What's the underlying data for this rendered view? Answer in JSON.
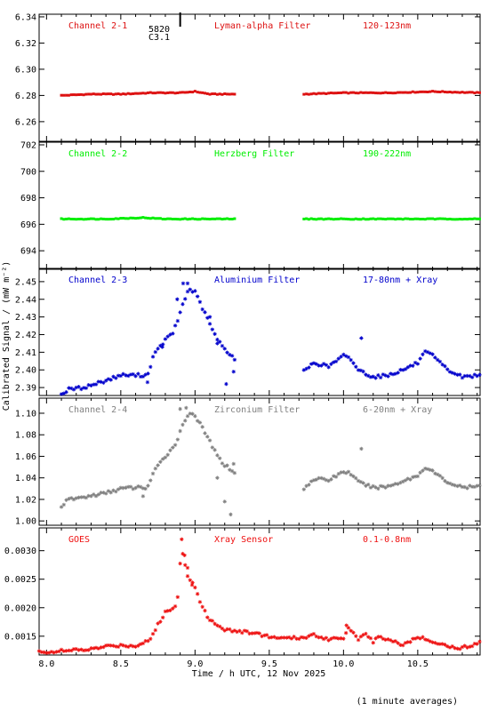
{
  "figure": {
    "xlabel": "Time / h UTC, 12 Nov 2025",
    "ylabel": "Calibrated Signal / (mW m⁻²)",
    "footnote": "(1 minute averages)",
    "marker_label_1": "5820",
    "marker_label_2": "C3.1",
    "marker_time": 8.9,
    "x_ticks": [
      "8.0",
      "8.5",
      "9.0",
      "9.5",
      "10.0",
      "10.5"
    ],
    "xlim": [
      7.95,
      10.92
    ]
  },
  "chart_data": [
    {
      "type": "scatter",
      "channel": "Channel 2-1",
      "filter": "Lyman-alpha Filter",
      "band": "120-123nm",
      "color": "#dd1111",
      "ylim": [
        6.245,
        6.342
      ],
      "y_ticks": [
        "6.26",
        "6.28",
        "6.30",
        "6.32",
        "6.34"
      ],
      "gap": [
        9.27,
        9.73
      ],
      "x_start": 8.1,
      "x_end": 10.92,
      "x": [
        8.1,
        8.3,
        8.5,
        8.7,
        8.9,
        9.0,
        9.1,
        9.27,
        9.73,
        10.0,
        10.3,
        10.6,
        10.92
      ],
      "values": [
        6.28,
        6.281,
        6.281,
        6.282,
        6.282,
        6.283,
        6.281,
        6.281,
        6.281,
        6.282,
        6.282,
        6.283,
        6.282
      ]
    },
    {
      "type": "scatter",
      "channel": "Channel 2-2",
      "filter": "Herzberg Filter",
      "band": "190-222nm",
      "color": "#00ee00",
      "ylim": [
        692.6,
        702.2
      ],
      "y_ticks": [
        "694",
        "696",
        "698",
        "700",
        "702"
      ],
      "gap": [
        9.27,
        9.73
      ],
      "x_start": 8.1,
      "x_end": 10.92,
      "x": [
        8.1,
        8.4,
        8.65,
        8.8,
        9.0,
        9.27,
        9.73,
        10.0,
        10.3,
        10.6,
        10.92
      ],
      "values": [
        696.4,
        696.4,
        696.5,
        696.4,
        696.4,
        696.4,
        696.4,
        696.4,
        696.4,
        696.4,
        696.4
      ]
    },
    {
      "type": "scatter",
      "channel": "Channel 2-3",
      "filter": "Aluminium Filter",
      "band": "17-80nm + Xray",
      "color": "#0000cc",
      "ylim": [
        2.3855,
        2.4575
      ],
      "y_ticks": [
        "2.39",
        "2.40",
        "2.41",
        "2.42",
        "2.43",
        "2.44",
        "2.45"
      ],
      "gap": [
        9.27,
        9.73
      ],
      "x_start": 8.1,
      "x_end": 10.92,
      "x": [
        8.1,
        8.15,
        8.25,
        8.4,
        8.5,
        8.6,
        8.68,
        8.72,
        8.8,
        8.85,
        8.88,
        8.92,
        8.96,
        9.0,
        9.05,
        9.1,
        9.15,
        9.2,
        9.27,
        9.73,
        9.8,
        9.9,
        10.0,
        10.05,
        10.1,
        10.2,
        10.3,
        10.4,
        10.5,
        10.55,
        10.6,
        10.7,
        10.8,
        10.92
      ],
      "values": [
        2.386,
        2.389,
        2.39,
        2.394,
        2.397,
        2.397,
        2.397,
        2.408,
        2.417,
        2.421,
        2.427,
        2.438,
        2.446,
        2.444,
        2.435,
        2.426,
        2.417,
        2.412,
        2.406,
        2.399,
        2.404,
        2.402,
        2.408,
        2.406,
        2.4,
        2.396,
        2.397,
        2.4,
        2.404,
        2.41,
        2.408,
        2.4,
        2.396,
        2.397
      ],
      "outliers_x": [
        8.68,
        8.78,
        8.88,
        8.92,
        8.95,
        9.1,
        9.15,
        9.21,
        9.26,
        10.12
      ],
      "outliers_y": [
        2.393,
        2.413,
        2.44,
        2.449,
        2.449,
        2.43,
        2.415,
        2.392,
        2.399,
        2.418
      ]
    },
    {
      "type": "scatter",
      "channel": "Channel 2-4",
      "filter": "Zirconium Filter",
      "band": "6-20nm + Xray",
      "color": "#808080",
      "ylim": [
        0.996,
        1.114
      ],
      "y_ticks": [
        "1.00",
        "1.02",
        "1.04",
        "1.06",
        "1.08",
        "1.10"
      ],
      "gap": [
        9.27,
        9.73
      ],
      "x_start": 8.1,
      "x_end": 10.92,
      "x": [
        8.1,
        8.15,
        8.25,
        8.4,
        8.5,
        8.6,
        8.68,
        8.72,
        8.8,
        8.85,
        8.88,
        8.92,
        8.96,
        9.0,
        9.05,
        9.1,
        9.15,
        9.2,
        9.27,
        9.73,
        9.8,
        9.9,
        10.0,
        10.05,
        10.1,
        10.2,
        10.3,
        10.4,
        10.5,
        10.55,
        10.6,
        10.7,
        10.8,
        10.92
      ],
      "values": [
        1.014,
        1.02,
        1.022,
        1.026,
        1.03,
        1.031,
        1.031,
        1.045,
        1.06,
        1.068,
        1.075,
        1.09,
        1.101,
        1.098,
        1.086,
        1.074,
        1.06,
        1.052,
        1.045,
        1.03,
        1.039,
        1.038,
        1.046,
        1.044,
        1.036,
        1.031,
        1.032,
        1.037,
        1.042,
        1.05,
        1.046,
        1.036,
        1.031,
        1.032
      ],
      "outliers_x": [
        8.65,
        8.9,
        8.94,
        9.15,
        9.2,
        9.24,
        9.26,
        10.12
      ],
      "outliers_y": [
        1.023,
        1.104,
        1.105,
        1.04,
        1.018,
        1.006,
        1.053,
        1.067
      ]
    },
    {
      "type": "scatter",
      "channel": "GOES",
      "filter": "Xray Sensor",
      "band": "0.1-0.8nm",
      "color": "#ee1111",
      "ylim": [
        0.00117,
        0.0034
      ],
      "y_ticks": [
        "0.0015",
        "0.0020",
        "0.0025",
        "0.0030"
      ],
      "gap": null,
      "x_start": 7.95,
      "x_end": 10.92,
      "x": [
        7.95,
        8.1,
        8.3,
        8.4,
        8.5,
        8.6,
        8.7,
        8.75,
        8.8,
        8.85,
        8.88,
        8.9,
        8.92,
        8.94,
        8.96,
        9.0,
        9.05,
        9.1,
        9.2,
        9.3,
        9.4,
        9.5,
        9.6,
        9.7,
        9.8,
        9.9,
        10.0,
        10.03,
        10.06,
        10.1,
        10.15,
        10.2,
        10.25,
        10.3,
        10.4,
        10.5,
        10.6,
        10.7,
        10.8,
        10.92
      ],
      "values": [
        0.00122,
        0.00124,
        0.00127,
        0.00132,
        0.00134,
        0.00133,
        0.00145,
        0.0017,
        0.00192,
        0.00198,
        0.00205,
        0.0028,
        0.003,
        0.00265,
        0.0025,
        0.00238,
        0.002,
        0.00178,
        0.00162,
        0.00158,
        0.00156,
        0.00149,
        0.00146,
        0.00147,
        0.00152,
        0.00145,
        0.00148,
        0.00165,
        0.00158,
        0.00146,
        0.00152,
        0.00141,
        0.00149,
        0.00145,
        0.00135,
        0.00148,
        0.00142,
        0.00132,
        0.00129,
        0.0014
      ],
      "outliers_x": [
        8.91,
        8.93,
        8.95,
        8.98,
        10.02
      ],
      "outliers_y": [
        0.0032,
        0.00292,
        0.0027,
        0.0024,
        0.00169
      ]
    }
  ]
}
